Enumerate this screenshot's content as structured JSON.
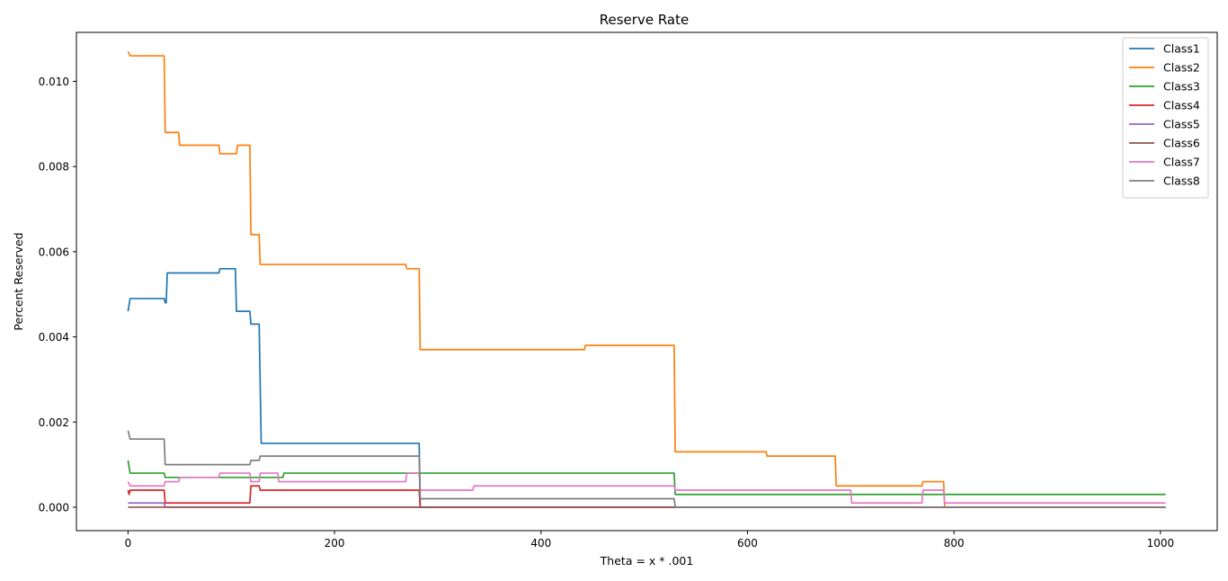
{
  "chart_data": {
    "type": "line",
    "title": "Reserve Rate",
    "xlabel": "Theta = x * .001",
    "ylabel": "Percent Reserved",
    "xlim": [
      -50,
      1055
    ],
    "ylim": [
      -0.00055,
      0.01115
    ],
    "xticks": [
      0,
      200,
      400,
      600,
      800,
      1000
    ],
    "xtick_labels": [
      "0",
      "200",
      "400",
      "600",
      "800",
      "1000"
    ],
    "yticks": [
      0.0,
      0.002,
      0.004,
      0.006,
      0.008,
      0.01
    ],
    "ytick_labels": [
      "0.000",
      "0.002",
      "0.004",
      "0.006",
      "0.008",
      "0.010"
    ],
    "grid": false,
    "legend_position": "top-right",
    "series": [
      {
        "name": "Class1",
        "color": "#1f77b4",
        "points": [
          [
            0,
            0.0046
          ],
          [
            2,
            0.0049
          ],
          [
            35,
            0.0049
          ],
          [
            36,
            0.0048
          ],
          [
            37,
            0.0048
          ],
          [
            38,
            0.0055
          ],
          [
            88,
            0.0055
          ],
          [
            89,
            0.0056
          ],
          [
            104,
            0.0056
          ],
          [
            105,
            0.0046
          ],
          [
            118,
            0.0046
          ],
          [
            119,
            0.0043
          ],
          [
            127,
            0.0043
          ],
          [
            129,
            0.0015
          ],
          [
            282,
            0.0015
          ],
          [
            283,
            0.0
          ],
          [
            1005,
            0.0
          ]
        ]
      },
      {
        "name": "Class2",
        "color": "#ff7f0e",
        "points": [
          [
            0,
            0.0107
          ],
          [
            2,
            0.0106
          ],
          [
            35,
            0.0106
          ],
          [
            36,
            0.0088
          ],
          [
            49,
            0.0088
          ],
          [
            50,
            0.0085
          ],
          [
            88,
            0.0085
          ],
          [
            89,
            0.0083
          ],
          [
            105,
            0.0083
          ],
          [
            106,
            0.0085
          ],
          [
            118,
            0.0085
          ],
          [
            119,
            0.0064
          ],
          [
            127,
            0.0064
          ],
          [
            128,
            0.0057
          ],
          [
            269,
            0.0057
          ],
          [
            270,
            0.0056
          ],
          [
            282,
            0.0056
          ],
          [
            283,
            0.0037
          ],
          [
            442,
            0.0037
          ],
          [
            443,
            0.0038
          ],
          [
            529,
            0.0038
          ],
          [
            530,
            0.0013
          ],
          [
            618,
            0.0013
          ],
          [
            619,
            0.0012
          ],
          [
            685,
            0.0012
          ],
          [
            686,
            0.0005
          ],
          [
            769,
            0.0005
          ],
          [
            770,
            0.0006
          ],
          [
            790,
            0.0006
          ],
          [
            791,
            0.0
          ],
          [
            1005,
            0.0
          ]
        ]
      },
      {
        "name": "Class3",
        "color": "#2ca02c",
        "points": [
          [
            0,
            0.0011
          ],
          [
            2,
            0.0008
          ],
          [
            35,
            0.0008
          ],
          [
            36,
            0.0007
          ],
          [
            105,
            0.0007
          ],
          [
            106,
            0.0007
          ],
          [
            150,
            0.0007
          ],
          [
            151,
            0.0008
          ],
          [
            529,
            0.0008
          ],
          [
            530,
            0.0003
          ],
          [
            1005,
            0.0003
          ]
        ]
      },
      {
        "name": "Class4",
        "color": "#d62728",
        "points": [
          [
            0,
            0.0004
          ],
          [
            1,
            0.0003
          ],
          [
            2,
            0.0004
          ],
          [
            35,
            0.0004
          ],
          [
            36,
            0.0001
          ],
          [
            118,
            0.0001
          ],
          [
            119,
            0.0005
          ],
          [
            127,
            0.0005
          ],
          [
            128,
            0.0004
          ],
          [
            282,
            0.0004
          ],
          [
            283,
            0.0
          ],
          [
            1005,
            0.0
          ]
        ]
      },
      {
        "name": "Class5",
        "color": "#9467bd",
        "points": [
          [
            0,
            0.0001
          ],
          [
            35,
            0.0001
          ],
          [
            36,
            0.0
          ],
          [
            1005,
            0.0
          ]
        ]
      },
      {
        "name": "Class6",
        "color": "#8c564b",
        "points": [
          [
            0,
            0.0
          ],
          [
            1005,
            0.0
          ]
        ]
      },
      {
        "name": "Class7",
        "color": "#e377c2",
        "points": [
          [
            0,
            0.0006
          ],
          [
            2,
            0.0005
          ],
          [
            35,
            0.0005
          ],
          [
            36,
            0.0006
          ],
          [
            49,
            0.0006
          ],
          [
            50,
            0.0007
          ],
          [
            88,
            0.0007
          ],
          [
            89,
            0.0008
          ],
          [
            118,
            0.0008
          ],
          [
            119,
            0.0006
          ],
          [
            127,
            0.0006
          ],
          [
            128,
            0.0008
          ],
          [
            145,
            0.0008
          ],
          [
            146,
            0.0006
          ],
          [
            269,
            0.0006
          ],
          [
            270,
            0.0008
          ],
          [
            282,
            0.0008
          ],
          [
            283,
            0.0004
          ],
          [
            334,
            0.0004
          ],
          [
            335,
            0.0005
          ],
          [
            529,
            0.0005
          ],
          [
            530,
            0.0004
          ],
          [
            700,
            0.0004
          ],
          [
            701,
            0.0001
          ],
          [
            769,
            0.0001
          ],
          [
            770,
            0.0004
          ],
          [
            790,
            0.0004
          ],
          [
            791,
            0.0001
          ],
          [
            1005,
            0.0001
          ]
        ]
      },
      {
        "name": "Class8",
        "color": "#7f7f7f",
        "points": [
          [
            0,
            0.0018
          ],
          [
            2,
            0.0016
          ],
          [
            35,
            0.0016
          ],
          [
            36,
            0.001
          ],
          [
            118,
            0.001
          ],
          [
            119,
            0.0011
          ],
          [
            127,
            0.0011
          ],
          [
            128,
            0.0012
          ],
          [
            282,
            0.0012
          ],
          [
            283,
            0.0002
          ],
          [
            529,
            0.0002
          ],
          [
            530,
            0.0
          ],
          [
            1005,
            0.0
          ]
        ]
      }
    ]
  }
}
